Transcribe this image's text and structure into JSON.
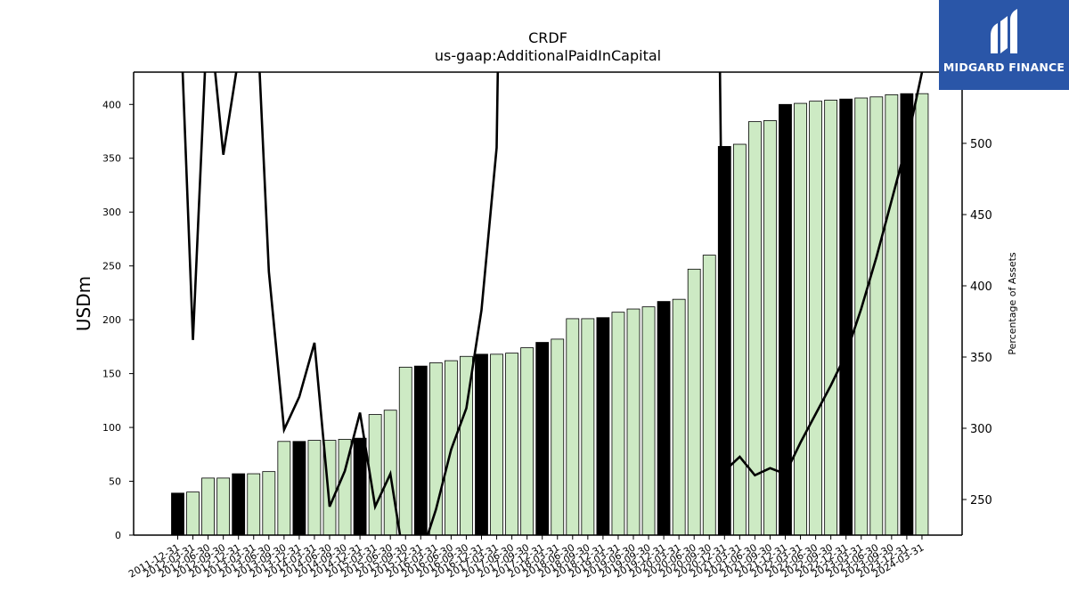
{
  "logo": {
    "text": "MIDGARD FINANCE"
  },
  "chart_data": {
    "type": "bar",
    "title": "CRDF",
    "subtitle": "us-gaap:AdditionalPaidInCapital",
    "ylabel": "USDm",
    "y2label": "Percentage of Assets",
    "ylim": [
      0,
      430
    ],
    "y2lim": [
      225,
      550
    ],
    "yticks": [
      0,
      50,
      100,
      150,
      200,
      250,
      300,
      350,
      400
    ],
    "y2ticks": [
      250,
      300,
      350,
      400,
      450,
      500
    ],
    "colors": {
      "annual": "#000000",
      "quarter": "#cdeac4",
      "line": "#000000"
    },
    "categories": [
      "2011-12-31",
      "2012-03-31",
      "2012-06-30",
      "2012-09-30",
      "2012-12-31",
      "2013-03-31",
      "2013-06-30",
      "2013-09-30",
      "2013-12-31",
      "2014-03-31",
      "2014-06-30",
      "2014-09-30",
      "2014-12-31",
      "2015-03-31",
      "2015-06-30",
      "2015-09-30",
      "2015-12-31",
      "2016-03-31",
      "2016-06-30",
      "2016-09-30",
      "2016-12-31",
      "2017-03-31",
      "2017-06-30",
      "2017-09-30",
      "2017-12-31",
      "2018-03-31",
      "2018-06-30",
      "2018-09-30",
      "2018-12-31",
      "2019-03-31",
      "2019-06-30",
      "2019-09-30",
      "2019-12-31",
      "2020-03-31",
      "2020-06-30",
      "2020-09-30",
      "2020-12-31",
      "2021-03-31",
      "2021-06-30",
      "2021-09-30",
      "2021-12-31",
      "2022-03-31",
      "2022-06-30",
      "2022-09-30",
      "2022-12-31",
      "2023-03-31",
      "2023-06-30",
      "2023-09-30",
      "2023-12-31",
      "2024-03-31"
    ],
    "xticklabels": [
      "2011-12-31",
      "2012-03-31",
      "2012-06-30",
      "2012-09-30",
      "2012-12-31",
      "2013-03-31",
      "2013-06-30",
      "2013-09-30",
      "2013-12-31",
      "2014-03-31",
      "2014-06-30",
      "2014-09-30",
      "2014-12-31",
      "2015-03-31",
      "2015-06-30",
      "2015-09-30",
      "2015-12-31",
      "2016-03-31",
      "2016-06-30",
      "2016-09-30",
      "2016-12-31",
      "2017-03-31",
      "2017-06-30",
      "2017-09-30",
      "2017-12-31",
      "2018-03-31",
      "2018-06-30",
      "2018-09-30",
      "2018-12-31",
      "2019-03-31",
      "2019-06-30",
      "2019-09-30",
      "2019-12-31",
      "2020-03-31",
      "2020-06-30",
      "2020-09-30",
      "2020-12-31",
      "2021-03-31",
      "2021-06-30",
      "2021-09-30",
      "2021-12-31",
      "2022-03-31",
      "2022-06-30",
      "2022-09-30",
      "2022-12-31",
      "2023-03-31",
      "2023-06-30",
      "2023-09-30",
      "2023-12-31",
      "2024-03-31"
    ],
    "annual": [
      true,
      false,
      false,
      false,
      true,
      false,
      false,
      false,
      true,
      false,
      false,
      false,
      true,
      false,
      false,
      false,
      true,
      false,
      false,
      false,
      true,
      false,
      false,
      false,
      true,
      false,
      false,
      false,
      true,
      false,
      false,
      false,
      true,
      false,
      false,
      false,
      true,
      false,
      false,
      false,
      true,
      false,
      false,
      false,
      true,
      false,
      false,
      false,
      true,
      false
    ],
    "values": [
      39,
      40,
      53,
      53,
      57,
      57,
      59,
      87,
      87,
      88,
      88,
      89,
      90,
      112,
      116,
      156,
      157,
      160,
      162,
      166,
      168,
      168,
      169,
      174,
      179,
      182,
      201,
      201,
      202,
      207,
      210,
      212,
      217,
      219,
      247,
      260,
      361,
      363,
      384,
      385,
      400,
      401,
      403,
      404,
      405,
      406,
      407,
      409,
      410,
      410
    ],
    "pct_assets": [
      640,
      362,
      600,
      492,
      560,
      640,
      410,
      299,
      322,
      360,
      245,
      270,
      311,
      245,
      268,
      200,
      210,
      243,
      285,
      314,
      383,
      497,
      1200,
      1200,
      1200,
      1200,
      1200,
      1200,
      1200,
      1200,
      1200,
      1200,
      1200,
      1200,
      1200,
      1200,
      270,
      280,
      267,
      272,
      268,
      290,
      310,
      330,
      352,
      384,
      420,
      460,
      500,
      550
    ]
  }
}
